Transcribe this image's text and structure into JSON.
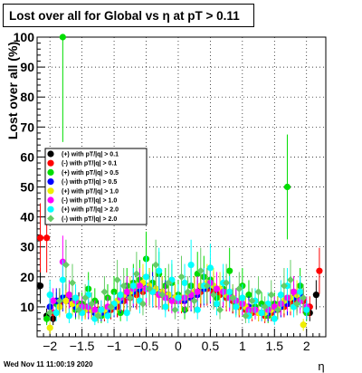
{
  "chart_data": {
    "type": "scatter",
    "title": "Lost over all for Global vs   η at pT > 0.11",
    "xlabel": "η",
    "ylabel": "Lost over all (%)",
    "xlim": [
      -2.2,
      2.3
    ],
    "ylim": [
      0,
      100
    ],
    "x_ticks": [
      -2,
      -1.5,
      -1,
      -0.5,
      0,
      0.5,
      1,
      1.5,
      2
    ],
    "x_tick_labels": [
      "−2",
      "−1.5",
      "−1",
      "−0.5",
      "0",
      "0.5",
      "1",
      "1.5",
      "2"
    ],
    "y_ticks": [
      10,
      20,
      30,
      40,
      50,
      60,
      70,
      80,
      90,
      100
    ],
    "legend_position": "left",
    "grid": true,
    "series": [
      {
        "name": "(+) with pT/|q| > 0.1",
        "color": "#000000",
        "marker": "circle",
        "x": [
          -2.15,
          -2.05,
          -1.95,
          -1.85,
          -1.75,
          -1.65,
          -1.55,
          -1.45,
          -1.35,
          -1.25,
          -1.15,
          -1.05,
          -0.95,
          -0.85,
          -0.75,
          -0.65,
          -0.55,
          -0.45,
          -0.35,
          -0.25,
          -0.15,
          -0.05,
          0.05,
          0.15,
          0.25,
          0.35,
          0.45,
          0.55,
          0.65,
          0.75,
          0.85,
          0.95,
          1.05,
          1.15,
          1.25,
          1.35,
          1.45,
          1.55,
          1.65,
          1.75,
          1.85,
          1.95,
          2.05,
          2.15
        ],
        "y": [
          17,
          7,
          6,
          12,
          13,
          12,
          11,
          10,
          9,
          9,
          8,
          9,
          10,
          12,
          14,
          15,
          16,
          17,
          16,
          15,
          14,
          13,
          13,
          14,
          15,
          16,
          17,
          16,
          15,
          14,
          12,
          11,
          10,
          9,
          8,
          8,
          9,
          10,
          11,
          12,
          13,
          12,
          8,
          14
        ]
      },
      {
        "name": "(-) with pT/|q| > 0.1",
        "color": "#ff0000",
        "marker": "circle",
        "x": [
          -2.15,
          -2.05,
          -1.95,
          -1.85,
          -1.75,
          -1.65,
          -1.55,
          -1.45,
          -1.35,
          -1.25,
          -1.15,
          -1.05,
          -0.95,
          -0.85,
          -0.75,
          -0.65,
          -0.55,
          -0.45,
          -0.35,
          -0.25,
          -0.15,
          -0.05,
          0.05,
          0.15,
          0.25,
          0.35,
          0.45,
          0.55,
          0.65,
          0.75,
          0.85,
          0.95,
          1.05,
          1.15,
          1.25,
          1.35,
          1.45,
          1.55,
          1.65,
          1.75,
          1.85,
          1.95,
          2.05,
          2.2
        ],
        "y": [
          33,
          33,
          8,
          11,
          12,
          11,
          10,
          9,
          9,
          8,
          8,
          9,
          10,
          12,
          13,
          14,
          15,
          16,
          15,
          14,
          13,
          12,
          12,
          13,
          14,
          15,
          16,
          15,
          14,
          13,
          12,
          10,
          9,
          8,
          8,
          7,
          8,
          9,
          10,
          11,
          12,
          12,
          10,
          22
        ]
      },
      {
        "name": "(+) with pT/|q| > 0.5",
        "color": "#00dd00",
        "marker": "circle",
        "x": [
          -2.05,
          -1.9,
          -1.8,
          -1.7,
          -1.6,
          -1.5,
          -1.4,
          -1.3,
          -1.2,
          -1.1,
          -1.0,
          -0.9,
          -0.8,
          -0.7,
          -0.6,
          -0.5,
          -0.4,
          -0.3,
          -0.2,
          -0.1,
          0.0,
          0.1,
          0.2,
          0.3,
          0.4,
          0.5,
          0.6,
          0.7,
          0.8,
          0.9,
          1.0,
          1.1,
          1.2,
          1.3,
          1.4,
          1.5,
          1.6,
          1.7,
          1.8,
          1.9,
          2.0
        ],
        "y": [
          6,
          11,
          100,
          14,
          9,
          11,
          16,
          12,
          7,
          13,
          15,
          8,
          17,
          18,
          19,
          26,
          18,
          21,
          17,
          18,
          14,
          9,
          17,
          21,
          20,
          19,
          13,
          16,
          22,
          11,
          17,
          14,
          10,
          11,
          7,
          11,
          11,
          50,
          15,
          17,
          8
        ]
      },
      {
        "name": "(-) with pT/|q| > 0.5",
        "color": "#0000ff",
        "marker": "circle",
        "x": [
          -2.0,
          -1.9,
          -1.8,
          -1.7,
          -1.6,
          -1.5,
          -1.4,
          -1.3,
          -1.2,
          -1.1,
          -1.0,
          -0.9,
          -0.8,
          -0.7,
          -0.6,
          -0.5,
          -0.4,
          -0.3,
          -0.2,
          -0.1,
          0.0,
          0.1,
          0.2,
          0.3,
          0.4,
          0.5,
          0.6,
          0.7,
          0.8,
          0.9,
          1.0,
          1.1,
          1.2,
          1.3,
          1.4,
          1.5,
          1.6,
          1.7,
          1.8,
          1.9,
          2.0
        ],
        "y": [
          10,
          12,
          13,
          12,
          10,
          9,
          9,
          8,
          8,
          9,
          10,
          12,
          14,
          15,
          16,
          17,
          16,
          15,
          14,
          13,
          12,
          12,
          13,
          14,
          16,
          17,
          16,
          15,
          14,
          12,
          11,
          10,
          9,
          8,
          8,
          9,
          10,
          11,
          13,
          14,
          9
        ]
      },
      {
        "name": "(+) with pT/|q| > 1.0",
        "color": "#eeee00",
        "marker": "circle",
        "x": [
          -2.0,
          -1.85,
          -1.75,
          -1.65,
          -1.55,
          -1.45,
          -1.35,
          -1.25,
          -1.15,
          -1.05,
          -0.95,
          -0.85,
          -0.75,
          -0.65,
          -0.55,
          -0.45,
          -0.35,
          -0.25,
          -0.15,
          -0.05,
          0.05,
          0.15,
          0.25,
          0.35,
          0.45,
          0.55,
          0.65,
          0.75,
          0.85,
          0.95,
          1.05,
          1.15,
          1.25,
          1.35,
          1.45,
          1.55,
          1.65,
          1.75,
          1.85,
          1.95
        ],
        "y": [
          3,
          10,
          12,
          11,
          10,
          9,
          9,
          8,
          9,
          10,
          12,
          14,
          15,
          17,
          18,
          17,
          16,
          15,
          14,
          13,
          13,
          14,
          15,
          17,
          18,
          17,
          16,
          14,
          13,
          11,
          10,
          9,
          8,
          8,
          9,
          10,
          12,
          13,
          14,
          4
        ]
      },
      {
        "name": "(-) with pT/|q| > 1.0",
        "color": "#ff00ff",
        "marker": "circle",
        "x": [
          -1.95,
          -1.8,
          -1.7,
          -1.6,
          -1.5,
          -1.4,
          -1.3,
          -1.2,
          -1.1,
          -1.0,
          -0.9,
          -0.8,
          -0.7,
          -0.6,
          -0.5,
          -0.4,
          -0.3,
          -0.2,
          -0.1,
          0.0,
          0.1,
          0.2,
          0.3,
          0.4,
          0.5,
          0.6,
          0.7,
          0.8,
          0.9,
          1.0,
          1.1,
          1.2,
          1.3,
          1.4,
          1.5,
          1.6,
          1.7,
          1.8,
          1.9,
          2.0
        ],
        "y": [
          12,
          25,
          14,
          12,
          10,
          10,
          9,
          9,
          10,
          11,
          13,
          15,
          16,
          17,
          16,
          15,
          14,
          13,
          12,
          12,
          13,
          14,
          15,
          17,
          18,
          16,
          15,
          13,
          12,
          11,
          9,
          9,
          8,
          9,
          10,
          11,
          13,
          15,
          12,
          10
        ]
      },
      {
        "name": "(+) with pT/|q| > 2.0",
        "color": "#00ffff",
        "marker": "circle",
        "x": [
          -2.0,
          -1.9,
          -1.8,
          -1.7,
          -1.6,
          -1.5,
          -1.4,
          -1.3,
          -1.2,
          -1.1,
          -1.0,
          -0.9,
          -0.8,
          -0.7,
          -0.6,
          -0.5,
          -0.4,
          -0.3,
          -0.2,
          -0.1,
          0.0,
          0.1,
          0.2,
          0.3,
          0.4,
          0.5,
          0.6,
          0.7,
          0.8,
          0.9,
          1.0,
          1.1,
          1.2,
          1.3,
          1.4,
          1.5,
          1.6,
          1.7,
          1.8,
          1.9,
          2.0
        ],
        "y": [
          14,
          8,
          19,
          7,
          13,
          8,
          14,
          6,
          9,
          7,
          11,
          14,
          8,
          17,
          12,
          20,
          15,
          22,
          10,
          19,
          13,
          18,
          24,
          9,
          17,
          23,
          11,
          18,
          15,
          10,
          13,
          7,
          12,
          8,
          11,
          6,
          14,
          17,
          10,
          15,
          9
        ]
      },
      {
        "name": "(-) with pT/|q| > 2.0",
        "color": "#66cc66",
        "marker": "diamond",
        "x": [
          -2.0,
          -1.85,
          -1.75,
          -1.65,
          -1.55,
          -1.45,
          -1.35,
          -1.25,
          -1.15,
          -1.05,
          -0.95,
          -0.85,
          -0.75,
          -0.65,
          -0.55,
          -0.45,
          -0.35,
          -0.25,
          -0.15,
          -0.05,
          0.05,
          0.15,
          0.25,
          0.35,
          0.45,
          0.55,
          0.65,
          0.75,
          0.85,
          0.95,
          1.05,
          1.15,
          1.25,
          1.35,
          1.45,
          1.55,
          1.65,
          1.75,
          1.85,
          1.95
        ],
        "y": [
          8,
          12,
          24,
          18,
          9,
          13,
          11,
          7,
          15,
          10,
          19,
          17,
          13,
          21,
          11,
          16,
          24,
          14,
          18,
          9,
          20,
          15,
          12,
          22,
          17,
          14,
          9,
          18,
          13,
          16,
          7,
          12,
          15,
          10,
          14,
          9,
          17,
          19,
          11,
          13
        ]
      }
    ]
  },
  "footer": {
    "date": "Wed Nov 11 11:00:19 2020"
  }
}
